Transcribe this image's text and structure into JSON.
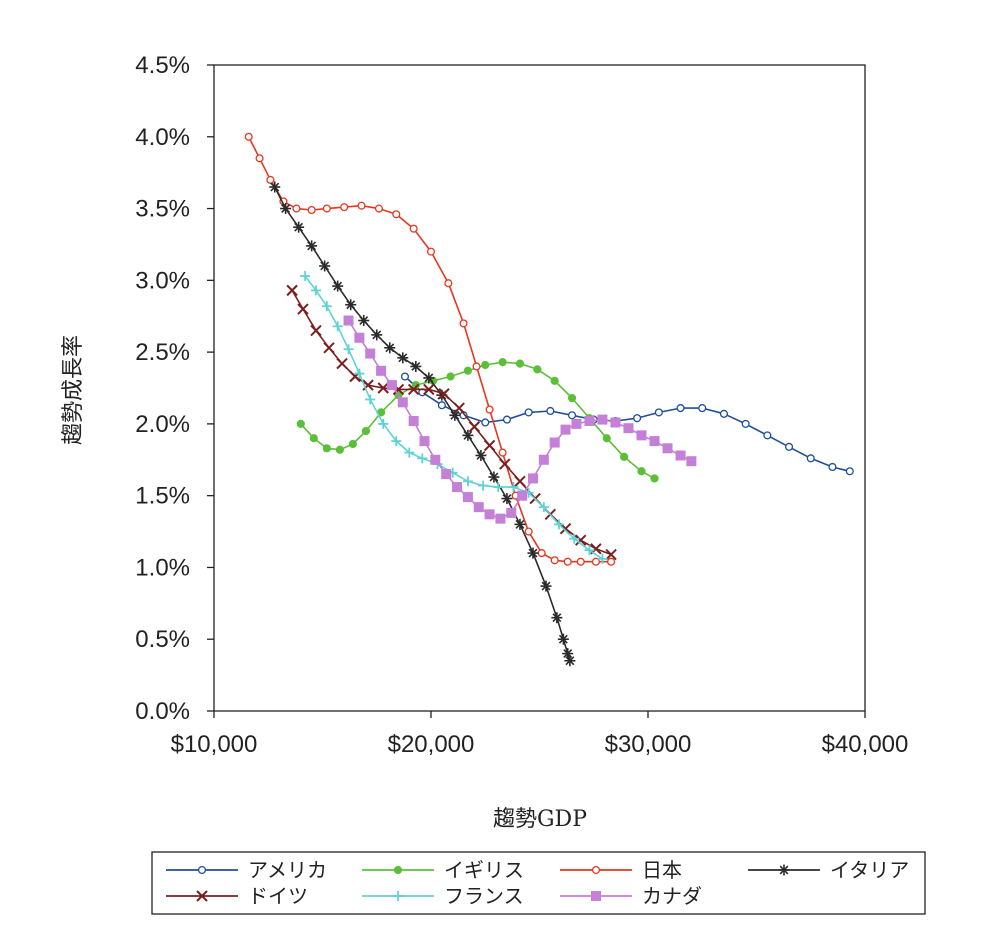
{
  "chart_data": {
    "type": "line",
    "title": "",
    "xlabel": "趨勢GDP",
    "ylabel": "趨勢成長率",
    "xlim": [
      10000,
      40000
    ],
    "ylim": [
      0,
      4.5
    ],
    "x_ticks": [
      {
        "value": 10000,
        "label": "$10,000"
      },
      {
        "value": 20000,
        "label": "$20,000"
      },
      {
        "value": 30000,
        "label": "$30,000"
      },
      {
        "value": 40000,
        "label": "$40,000"
      }
    ],
    "y_ticks": [
      {
        "value": 0.0,
        "label": "0.0%"
      },
      {
        "value": 0.5,
        "label": "0.5%"
      },
      {
        "value": 1.0,
        "label": "1.0%"
      },
      {
        "value": 1.5,
        "label": "1.5%"
      },
      {
        "value": 2.0,
        "label": "2.0%"
      },
      {
        "value": 2.5,
        "label": "2.5%"
      },
      {
        "value": 3.0,
        "label": "3.0%"
      },
      {
        "value": 3.5,
        "label": "3.5%"
      },
      {
        "value": 4.0,
        "label": "4.0%"
      },
      {
        "value": 4.5,
        "label": "4.5%"
      }
    ],
    "legend_position": "bottom",
    "series": [
      {
        "name": "アメリカ",
        "color": "#1f4e9c",
        "marker": "open-circle",
        "x": [
          18800,
          19600,
          20500,
          21500,
          22500,
          23500,
          24500,
          25500,
          26500,
          27500,
          28500,
          29500,
          30500,
          31500,
          32500,
          33500,
          34500,
          35500,
          36500,
          37500,
          38500,
          39300
        ],
        "y": [
          2.33,
          2.22,
          2.13,
          2.06,
          2.01,
          2.03,
          2.08,
          2.09,
          2.06,
          2.03,
          2.02,
          2.04,
          2.08,
          2.11,
          2.11,
          2.07,
          2.0,
          1.92,
          1.84,
          1.76,
          1.7,
          1.67
        ]
      },
      {
        "name": "イギリス",
        "color": "#5cbf3a",
        "marker": "filled-circle",
        "x": [
          14000,
          14600,
          15200,
          15800,
          16400,
          17000,
          17700,
          18500,
          19300,
          20100,
          20900,
          21700,
          22500,
          23300,
          24100,
          24900,
          25700,
          26500,
          27300,
          28100,
          28900,
          29700,
          30300
        ],
        "y": [
          2.0,
          1.9,
          1.83,
          1.82,
          1.86,
          1.95,
          2.08,
          2.2,
          2.27,
          2.3,
          2.33,
          2.37,
          2.41,
          2.43,
          2.42,
          2.38,
          2.3,
          2.18,
          2.04,
          1.9,
          1.77,
          1.67,
          1.62
        ]
      },
      {
        "name": "日本",
        "color": "#e8361f",
        "marker": "open-circle",
        "x": [
          11600,
          12100,
          12600,
          13200,
          13800,
          14500,
          15200,
          16000,
          16800,
          17600,
          18400,
          19200,
          20000,
          20800,
          21500,
          22100,
          22700,
          23300,
          23900,
          24500,
          25100,
          25700,
          26300,
          26900,
          27600,
          28300
        ],
        "y": [
          4.0,
          3.85,
          3.7,
          3.55,
          3.5,
          3.49,
          3.5,
          3.51,
          3.52,
          3.5,
          3.46,
          3.36,
          3.2,
          2.98,
          2.7,
          2.4,
          2.1,
          1.8,
          1.5,
          1.25,
          1.1,
          1.05,
          1.04,
          1.04,
          1.04,
          1.04
        ]
      },
      {
        "name": "イタリア",
        "color": "#2b2b2b",
        "marker": "asterisk",
        "x": [
          12800,
          13300,
          13900,
          14500,
          15100,
          15700,
          16300,
          16900,
          17500,
          18100,
          18700,
          19300,
          19900,
          20500,
          21100,
          21700,
          22300,
          22900,
          23500,
          24100,
          24700,
          25300,
          25800,
          26100,
          26300,
          26400
        ],
        "y": [
          3.65,
          3.5,
          3.37,
          3.24,
          3.1,
          2.96,
          2.83,
          2.72,
          2.62,
          2.53,
          2.46,
          2.4,
          2.32,
          2.2,
          2.06,
          1.92,
          1.78,
          1.63,
          1.48,
          1.3,
          1.1,
          0.87,
          0.65,
          0.5,
          0.4,
          0.35
        ]
      },
      {
        "name": "ドイツ",
        "color": "#7a1f1f",
        "marker": "cross",
        "x": [
          13600,
          14100,
          14700,
          15300,
          15900,
          16500,
          17100,
          17800,
          18500,
          19200,
          19900,
          20600,
          21300,
          22000,
          22700,
          23400,
          24100,
          24800,
          25500,
          26200,
          26900,
          27600,
          28300
        ],
        "y": [
          2.93,
          2.8,
          2.65,
          2.53,
          2.42,
          2.33,
          2.27,
          2.25,
          2.24,
          2.24,
          2.24,
          2.21,
          2.11,
          1.98,
          1.85,
          1.72,
          1.6,
          1.48,
          1.37,
          1.27,
          1.19,
          1.13,
          1.09
        ]
      },
      {
        "name": "フランス",
        "color": "#5fd3d3",
        "marker": "plus",
        "x": [
          14200,
          14700,
          15200,
          15700,
          16200,
          16700,
          17200,
          17800,
          18400,
          19000,
          19600,
          20300,
          21000,
          21700,
          22400,
          23100,
          23800,
          24500,
          25200,
          25900,
          26600,
          27300,
          27900
        ],
        "y": [
          3.03,
          2.93,
          2.82,
          2.68,
          2.52,
          2.35,
          2.17,
          2.0,
          1.88,
          1.8,
          1.76,
          1.72,
          1.66,
          1.6,
          1.57,
          1.56,
          1.56,
          1.52,
          1.42,
          1.3,
          1.2,
          1.12,
          1.06
        ]
      },
      {
        "name": "カナダ",
        "color": "#c47fd6",
        "marker": "filled-square",
        "x": [
          16200,
          16700,
          17200,
          17700,
          18200,
          18700,
          19200,
          19700,
          20200,
          20700,
          21200,
          21700,
          22200,
          22700,
          23200,
          23700,
          24200,
          24700,
          25200,
          25700,
          26200,
          26700,
          27300,
          27900,
          28500,
          29100,
          29700,
          30300,
          30900,
          31500,
          32000
        ],
        "y": [
          2.72,
          2.6,
          2.49,
          2.37,
          2.27,
          2.15,
          2.02,
          1.88,
          1.75,
          1.65,
          1.56,
          1.49,
          1.42,
          1.37,
          1.34,
          1.38,
          1.5,
          1.62,
          1.75,
          1.87,
          1.96,
          2.0,
          2.02,
          2.03,
          2.01,
          1.97,
          1.92,
          1.88,
          1.83,
          1.78,
          1.74
        ]
      }
    ]
  }
}
